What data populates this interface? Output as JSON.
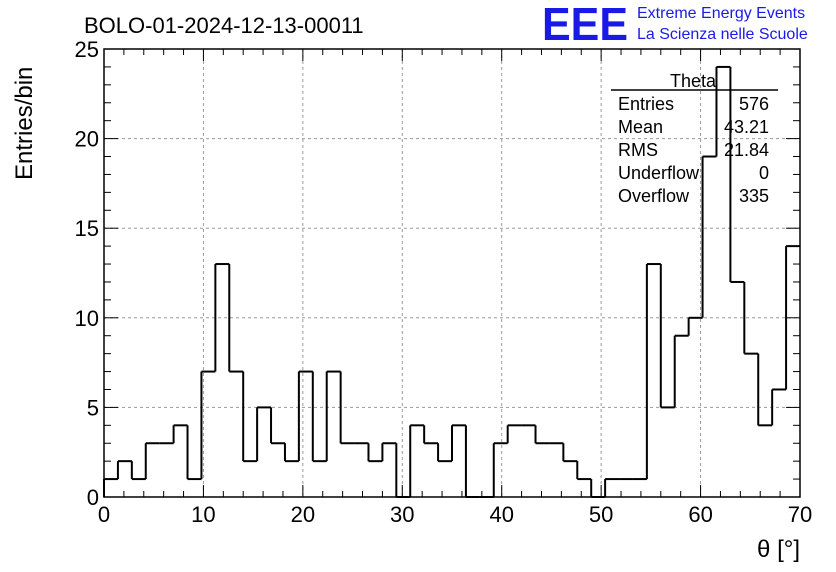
{
  "title": "BOLO-01-2024-12-13-00011",
  "logo": {
    "mark": "EEE",
    "line1": "Extreme Energy Events",
    "line2": "La Scienza nelle Scuole",
    "color": "#1a1ae6"
  },
  "stats": {
    "name": "Theta",
    "rows": [
      {
        "label": "Entries",
        "value": "576"
      },
      {
        "label": "Mean",
        "value": "43.21"
      },
      {
        "label": "RMS",
        "value": "21.84"
      },
      {
        "label": "Underflow",
        "value": "0"
      },
      {
        "label": "Overflow",
        "value": "335"
      }
    ]
  },
  "chart_data": {
    "type": "bar",
    "style": "step-histogram",
    "xlabel": "θ [°]",
    "ylabel": "Entries/bin",
    "xlim": [
      0,
      70
    ],
    "ylim": [
      0,
      25
    ],
    "bin_width": 1.4,
    "bin_lo_edges": [
      0,
      1.4,
      2.8,
      4.2,
      5.6,
      7.0,
      8.4,
      9.8,
      11.2,
      12.6,
      14.0,
      15.4,
      16.8,
      18.2,
      19.6,
      21.0,
      22.4,
      23.8,
      25.2,
      26.6,
      28.0,
      29.4,
      30.8,
      32.2,
      33.6,
      35.0,
      36.4,
      37.8,
      39.2,
      40.6,
      42.0,
      43.4,
      44.8,
      46.2,
      47.6,
      49.0,
      50.4,
      51.8,
      53.2,
      54.6,
      56.0,
      57.4,
      58.8,
      60.2,
      61.6,
      63.0,
      64.4,
      65.8,
      67.2,
      68.6
    ],
    "values": [
      1,
      2,
      1,
      3,
      3,
      4,
      1,
      7,
      13,
      7,
      2,
      5,
      3,
      2,
      7,
      2,
      7,
      3,
      3,
      2,
      3,
      0,
      4,
      3,
      2,
      4,
      0,
      0,
      3,
      4,
      4,
      3,
      3,
      2,
      1,
      0,
      1,
      1,
      1,
      13,
      5,
      9,
      10,
      19,
      24,
      12,
      8,
      4,
      6,
      14
    ],
    "x_ticks": [
      "0",
      "10",
      "20",
      "30",
      "40",
      "50",
      "60",
      "70"
    ],
    "y_ticks": [
      "0",
      "5",
      "10",
      "15",
      "20",
      "25"
    ],
    "grid": true,
    "legend_position": "top-right",
    "line_color": "#000000",
    "grid_color": "#9a9a9a"
  }
}
